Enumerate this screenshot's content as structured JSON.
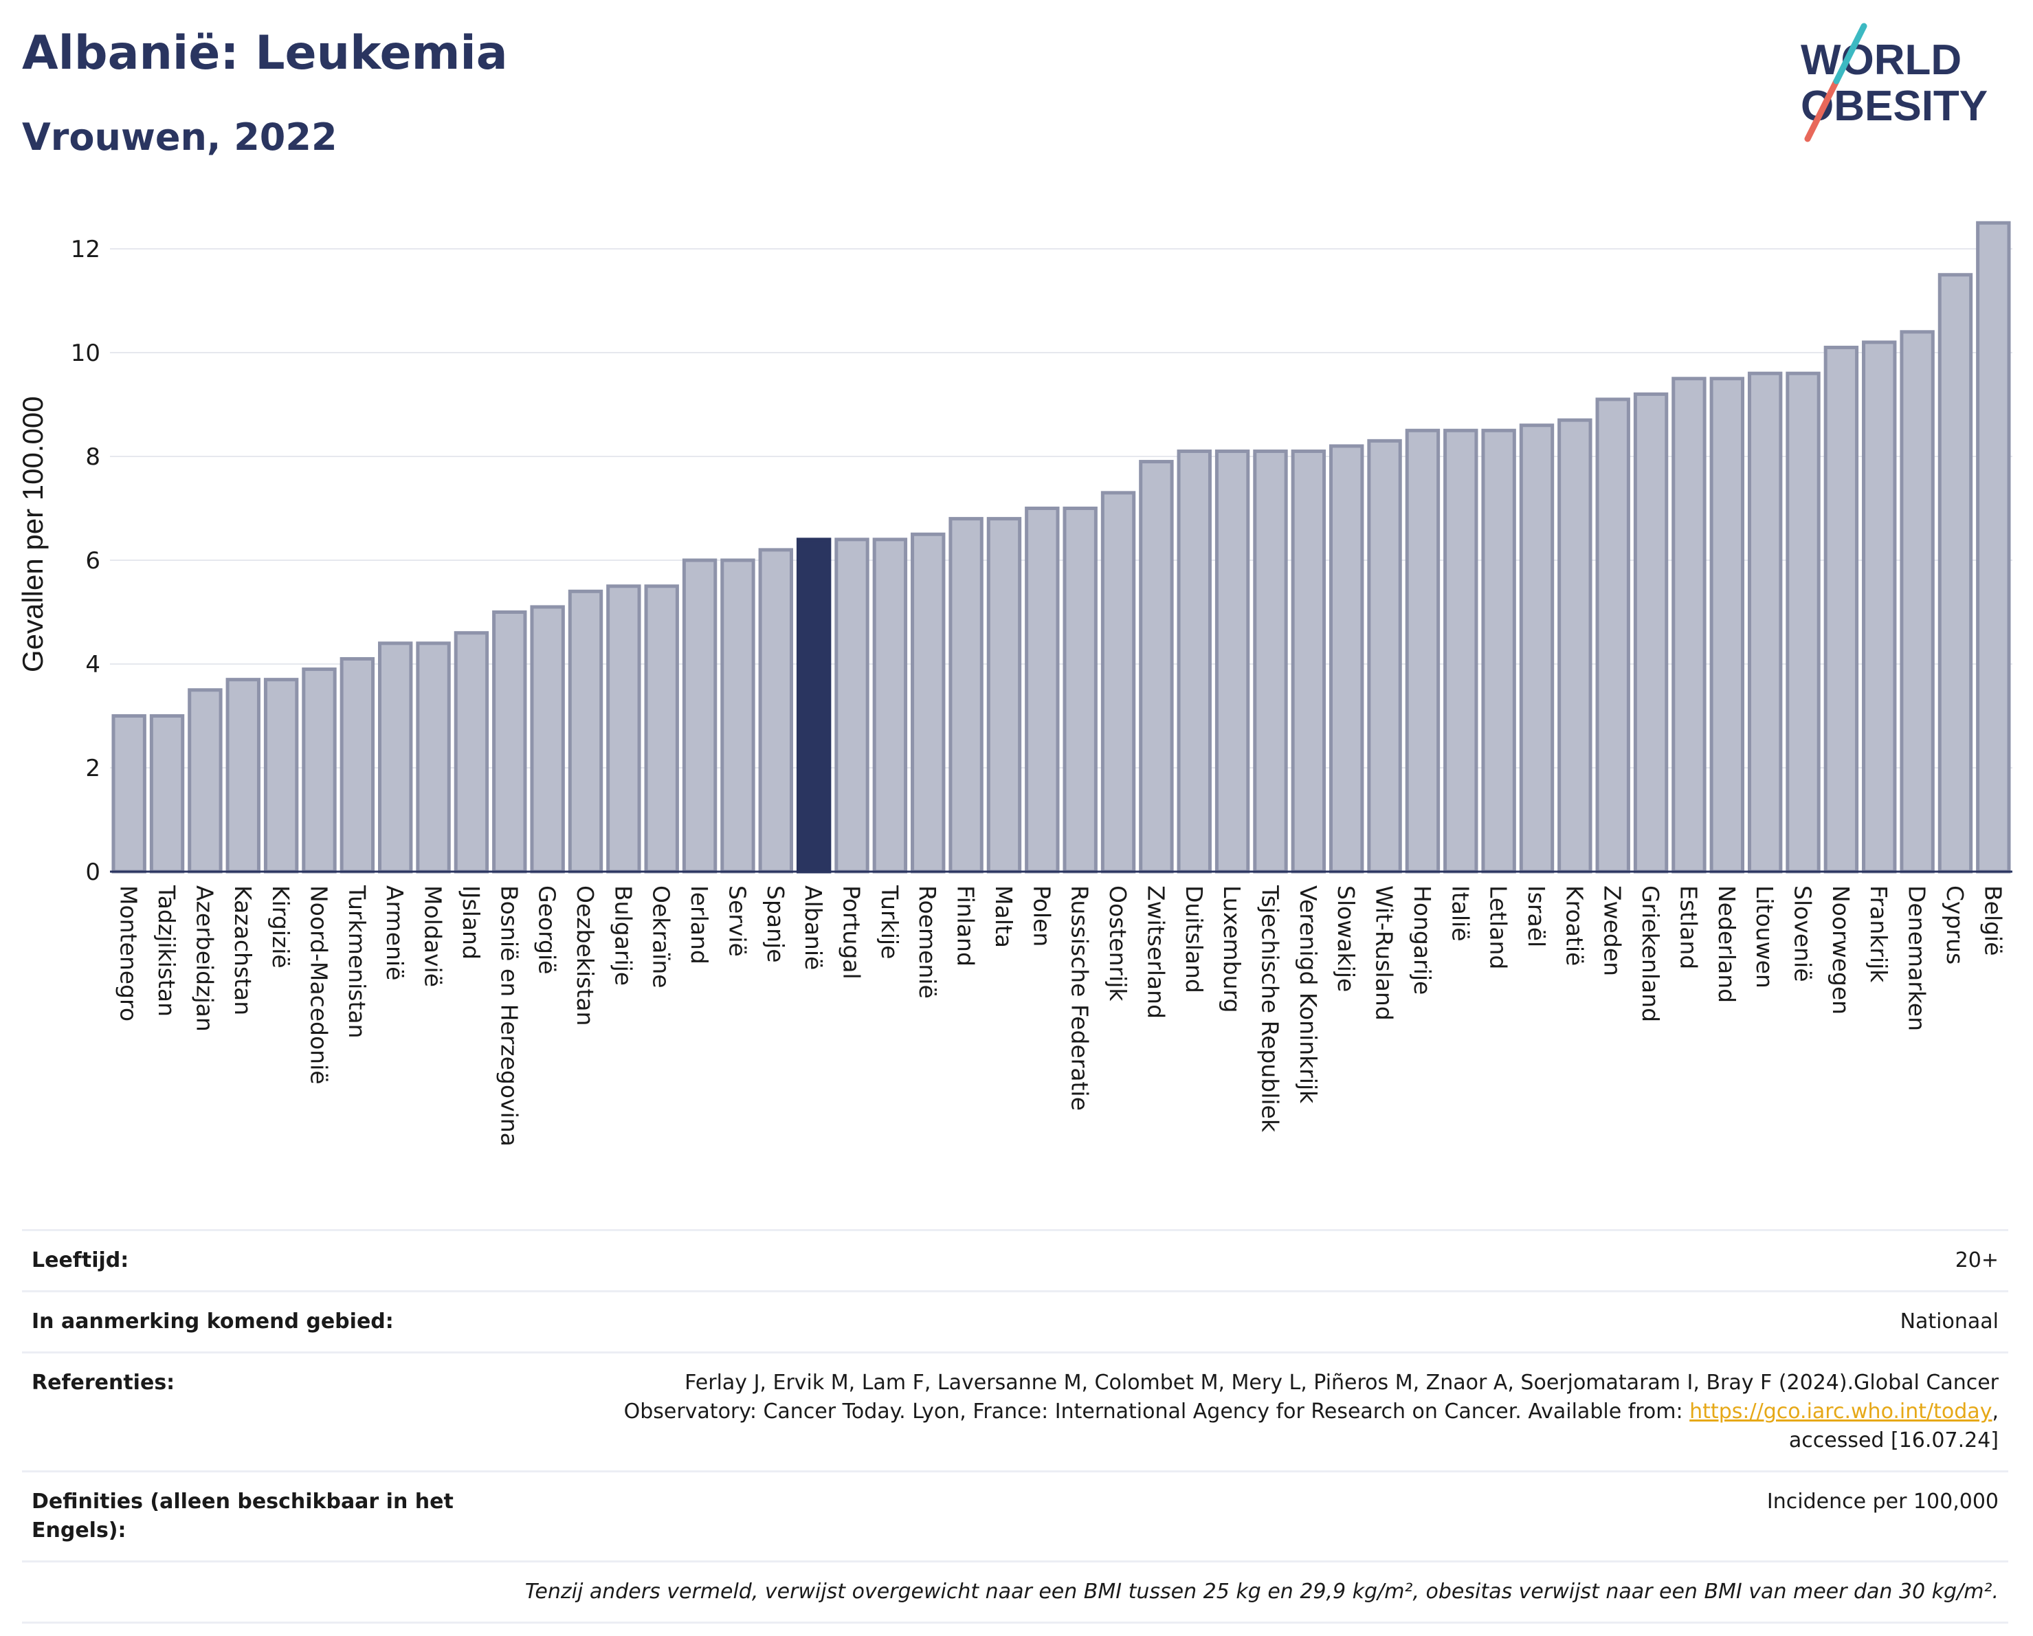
{
  "title": "Albanië: Leukemia",
  "subtitle": "Vrouwen, 2022",
  "logo": {
    "line1": "WORLD",
    "line2": "OBESITY"
  },
  "colors": {
    "bar": "#b9bdcc",
    "bar_border": "#8e93aa",
    "highlight": "#2a3560",
    "grid": "#e6e8ee",
    "logo_navy": "#2a3560",
    "logo_red": "#e8685a",
    "logo_teal": "#3cb9c2"
  },
  "chart_data": {
    "type": "bar",
    "ylabel": "Gevallen per 100.000",
    "ylim": [
      0,
      13
    ],
    "yticks": [
      0,
      2,
      4,
      6,
      8,
      10,
      12
    ],
    "grid": true,
    "highlight_category": "Albanië",
    "categories": [
      "Montenegro",
      "Tadzjikistan",
      "Azerbeidzjan",
      "Kazachstan",
      "Kirgizië",
      "Noord-Macedonië",
      "Turkmenistan",
      "Armenië",
      "Moldavië",
      "IJsland",
      "Bosnië en Herzegovina",
      "Georgië",
      "Oezbekistan",
      "Bulgarije",
      "Oekraïne",
      "Ierland",
      "Servië",
      "Spanje",
      "Albanië",
      "Portugal",
      "Turkije",
      "Roemenië",
      "Finland",
      "Malta",
      "Polen",
      "Russische Federatie",
      "Oostenrijk",
      "Zwitserland",
      "Duitsland",
      "Luxemburg",
      "Tsjechische Republiek",
      "Verenigd Koninkrijk",
      "Slowakije",
      "Wit-Rusland",
      "Hongarije",
      "Italië",
      "Letland",
      "Israël",
      "Kroatië",
      "Zweden",
      "Griekenland",
      "Estland",
      "Nederland",
      "Litouwen",
      "Slovenië",
      "Noorwegen",
      "Frankrijk",
      "Denemarken",
      "Cyprus",
      "België"
    ],
    "values": [
      3.0,
      3.0,
      3.5,
      3.7,
      3.7,
      3.9,
      4.1,
      4.4,
      4.4,
      4.6,
      5.0,
      5.1,
      5.4,
      5.5,
      5.5,
      6.0,
      6.0,
      6.2,
      6.4,
      6.4,
      6.4,
      6.5,
      6.8,
      6.8,
      7.0,
      7.0,
      7.3,
      7.9,
      8.1,
      8.1,
      8.1,
      8.1,
      8.2,
      8.3,
      8.5,
      8.5,
      8.5,
      8.6,
      8.7,
      9.1,
      9.2,
      9.5,
      9.5,
      9.6,
      9.6,
      10.1,
      10.2,
      10.4,
      11.5,
      12.5
    ]
  },
  "info": {
    "age_label": "Leeftijd:",
    "age_value": "20+",
    "area_label": "In aanmerking komend gebied:",
    "area_value": "Nationaal",
    "ref_label": "Referenties:",
    "ref_line1": "Ferlay J, Ervik M, Lam F, Laversanne M, Colombet M, Mery L, Piñeros M, Znaor A, Soerjomataram I, Bray F (2024).Global Cancer",
    "ref_line2": "Observatory: Cancer Today. Lyon, France: International Agency for Research on Cancer. Available from: ",
    "ref_link": "https://gco.iarc.who.int/today",
    "ref_line2_end": ",",
    "ref_line3": "accessed [16.07.24]",
    "def_label": "Definities (alleen beschikbaar in het Engels):",
    "def_value": "Incidence per 100,000",
    "note": "Tenzij anders vermeld, verwijst overgewicht naar een BMI tussen 25 kg en 29,9 kg/m², obesitas verwijst naar een BMI van meer dan 30 kg/m²."
  }
}
